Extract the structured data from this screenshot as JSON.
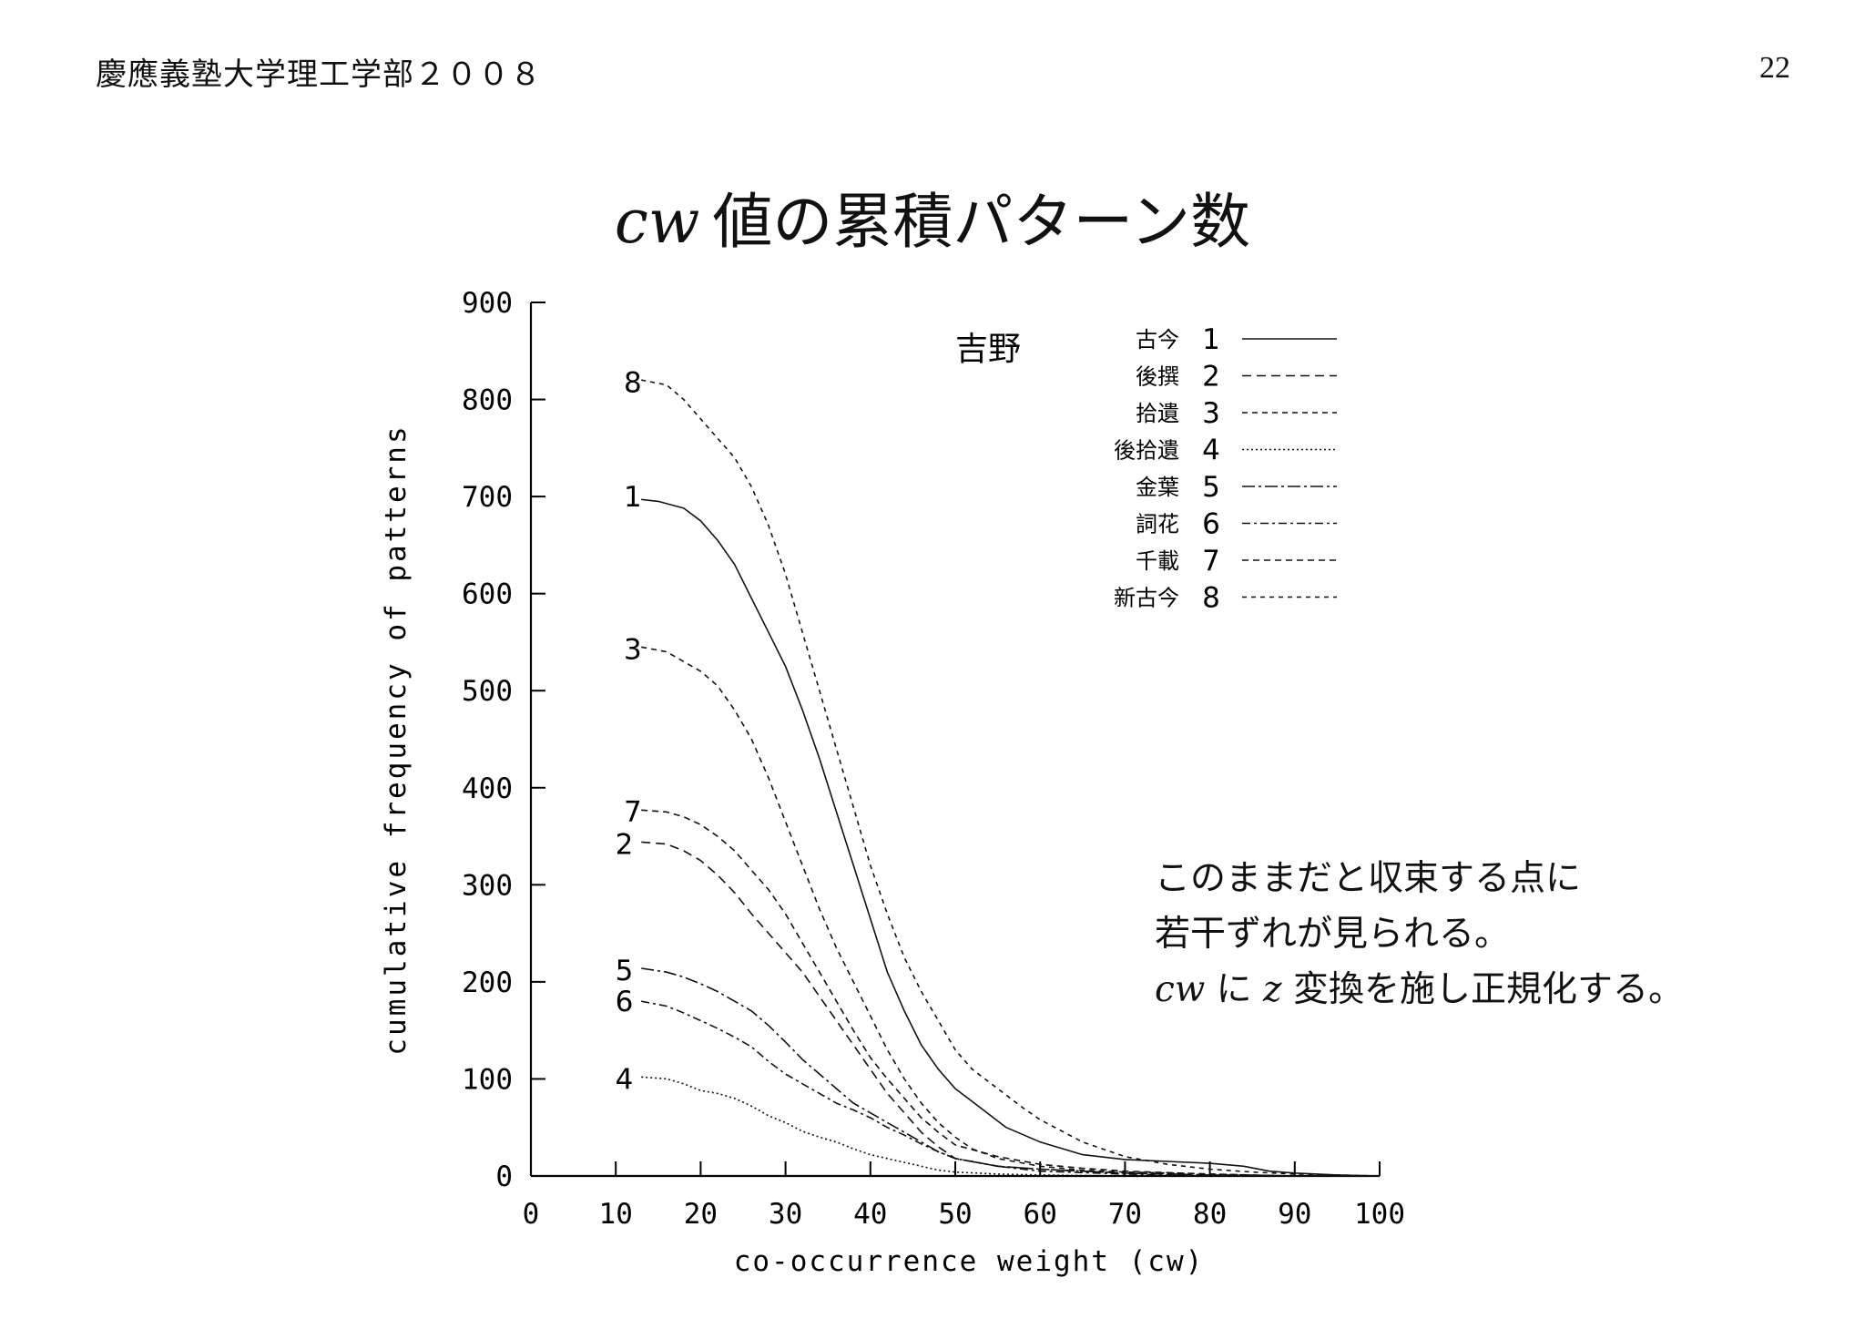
{
  "header": {
    "institution": "慶應義塾大学理工学部２００８",
    "page_number": "22"
  },
  "title": {
    "math": "cw",
    "text": "値の累積パターン数"
  },
  "note": {
    "line1": "このままだと収束する点に",
    "line2": "若干ずれが見られる。",
    "line3_math1": "cw",
    "line3_mid": " に ",
    "line3_math2": "z",
    "line3_rest": " 変換を施し正規化する。"
  },
  "chart_data": {
    "type": "line",
    "title": "吉野",
    "xlabel": "co-occurrence weight (cw)",
    "ylabel": "cumulative frequency of patterns",
    "xlim": [
      0,
      100
    ],
    "ylim": [
      0,
      900
    ],
    "xticks": [
      0,
      10,
      20,
      30,
      40,
      50,
      60,
      70,
      80,
      90,
      100
    ],
    "yticks": [
      0,
      100,
      200,
      300,
      400,
      500,
      600,
      700,
      800,
      900
    ],
    "grid": false,
    "legend_position": "top-right",
    "series": [
      {
        "name": "古今",
        "num": "1",
        "dash": "",
        "label_at": [
          12,
          700
        ],
        "x": [
          13,
          15,
          18,
          20,
          22,
          24,
          26,
          28,
          30,
          32,
          34,
          36,
          38,
          40,
          42,
          44,
          46,
          48,
          50,
          53,
          56,
          60,
          65,
          70,
          75,
          80,
          84,
          87,
          90,
          95,
          100
        ],
        "y": [
          697,
          695,
          688,
          675,
          655,
          630,
          595,
          560,
          525,
          480,
          430,
          375,
          320,
          265,
          210,
          170,
          135,
          110,
          90,
          70,
          50,
          35,
          22,
          17,
          15,
          13,
          10,
          5,
          3,
          1,
          0
        ]
      },
      {
        "name": "後撰",
        "num": "2",
        "dash": "10 6",
        "label_at": [
          11,
          342
        ],
        "x": [
          13,
          16,
          18,
          20,
          22,
          24,
          26,
          28,
          30,
          32,
          34,
          36,
          38,
          40,
          42,
          44,
          46,
          48,
          50,
          55,
          60,
          65,
          70,
          80,
          90,
          100
        ],
        "y": [
          344,
          342,
          335,
          325,
          310,
          292,
          270,
          250,
          230,
          210,
          185,
          160,
          135,
          110,
          85,
          65,
          45,
          30,
          18,
          10,
          7,
          5,
          3,
          1,
          0,
          0
        ]
      },
      {
        "name": "拾遺",
        "num": "3",
        "dash": "6 5",
        "label_at": [
          12,
          543
        ],
        "x": [
          13,
          16,
          18,
          20,
          22,
          24,
          26,
          28,
          30,
          32,
          34,
          36,
          38,
          40,
          42,
          44,
          46,
          48,
          50,
          52,
          55,
          60,
          65,
          70,
          80,
          90,
          100
        ],
        "y": [
          545,
          540,
          530,
          520,
          505,
          480,
          450,
          410,
          365,
          320,
          275,
          235,
          200,
          165,
          130,
          100,
          75,
          55,
          40,
          28,
          18,
          10,
          6,
          4,
          2,
          0,
          0
        ]
      },
      {
        "name": "後拾遺",
        "num": "4",
        "dash": "2 3",
        "label_at": [
          11,
          100
        ],
        "x": [
          13,
          16,
          18,
          20,
          22,
          24,
          26,
          28,
          30,
          32,
          34,
          36,
          38,
          40,
          42,
          44,
          46,
          48,
          50,
          55,
          60,
          70,
          80,
          100
        ],
        "y": [
          102,
          100,
          95,
          88,
          85,
          80,
          72,
          62,
          55,
          46,
          40,
          35,
          28,
          22,
          18,
          14,
          10,
          6,
          4,
          2,
          1,
          0,
          0,
          0
        ]
      },
      {
        "name": "金葉",
        "num": "5",
        "dash": "14 4 3 4",
        "label_at": [
          11,
          212
        ],
        "x": [
          13,
          16,
          18,
          20,
          22,
          24,
          26,
          28,
          30,
          32,
          34,
          36,
          38,
          40,
          42,
          44,
          46,
          48,
          50,
          55,
          60,
          65,
          70,
          80,
          90,
          100
        ],
        "y": [
          214,
          210,
          205,
          198,
          190,
          180,
          170,
          155,
          138,
          120,
          105,
          90,
          75,
          65,
          55,
          45,
          35,
          25,
          18,
          10,
          7,
          5,
          3,
          1,
          0,
          0
        ]
      },
      {
        "name": "詞花",
        "num": "6",
        "dash": "9 4 3 4",
        "label_at": [
          11,
          180
        ],
        "x": [
          13,
          16,
          18,
          20,
          22,
          24,
          26,
          28,
          30,
          32,
          34,
          36,
          38,
          40,
          42,
          44,
          46,
          48,
          50,
          55,
          60,
          70,
          80,
          100
        ],
        "y": [
          180,
          175,
          168,
          160,
          152,
          143,
          133,
          118,
          105,
          95,
          85,
          75,
          68,
          60,
          50,
          42,
          33,
          25,
          18,
          10,
          5,
          2,
          0,
          0
        ]
      },
      {
        "name": "千載",
        "num": "7",
        "dash": "7 5",
        "label_at": [
          12,
          376
        ],
        "x": [
          13,
          16,
          18,
          20,
          22,
          24,
          26,
          28,
          30,
          32,
          34,
          36,
          38,
          40,
          42,
          44,
          46,
          48,
          50,
          55,
          60,
          65,
          70,
          80,
          90,
          100
        ],
        "y": [
          377,
          375,
          370,
          362,
          350,
          335,
          315,
          295,
          270,
          240,
          210,
          180,
          150,
          122,
          100,
          80,
          60,
          45,
          32,
          20,
          12,
          8,
          5,
          2,
          0,
          0
        ]
      },
      {
        "name": "新古今",
        "num": "8",
        "dash": "5 5",
        "label_at": [
          12,
          818
        ],
        "x": [
          13,
          16,
          18,
          20,
          22,
          24,
          26,
          28,
          30,
          32,
          34,
          36,
          38,
          40,
          42,
          44,
          46,
          48,
          50,
          52,
          55,
          58,
          60,
          65,
          70,
          75,
          80,
          85,
          90,
          95,
          100
        ],
        "y": [
          820,
          815,
          800,
          780,
          760,
          740,
          710,
          670,
          620,
          560,
          500,
          440,
          380,
          320,
          270,
          225,
          190,
          160,
          130,
          110,
          90,
          70,
          58,
          35,
          20,
          12,
          7,
          4,
          2,
          1,
          0
        ]
      }
    ]
  }
}
